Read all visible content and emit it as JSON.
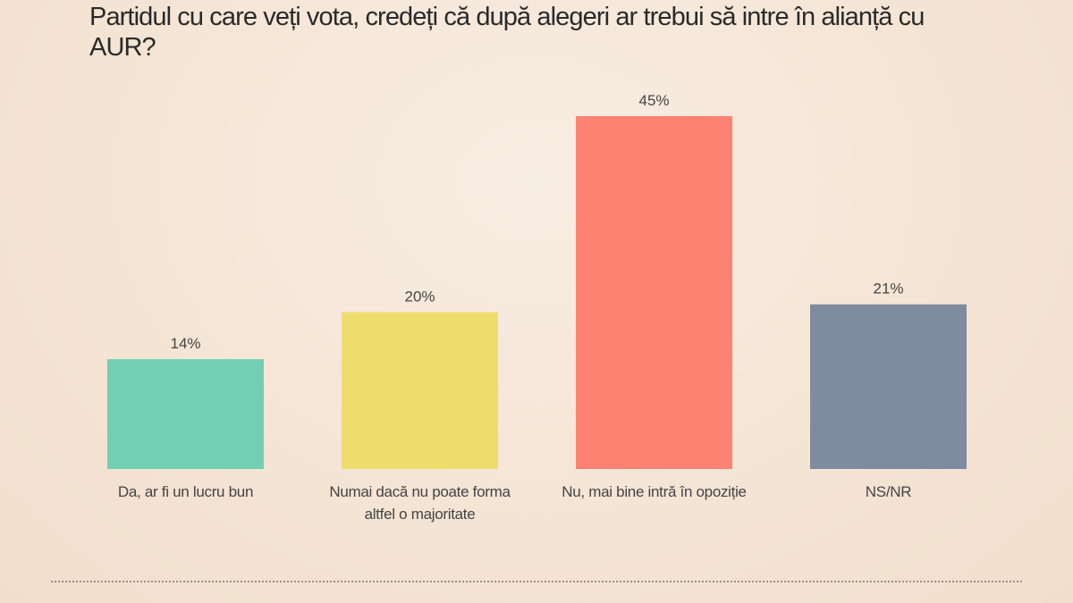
{
  "chart_data": {
    "type": "bar",
    "title": "Partidul cu care veți vota, credeți că după alegeri ar trebui să intre în alianță cu AUR?",
    "categories": [
      "Da, ar fi un lucru bun",
      "Numai dacă nu poate forma altfel o majoritate",
      "Nu, mai bine intră în opoziție",
      "NS/NR"
    ],
    "values": [
      14,
      20,
      45,
      21
    ],
    "value_labels": [
      "14%",
      "20%",
      "45%",
      "21%"
    ],
    "colors": [
      "#72cfb4",
      "#eedd6d",
      "#fe8272",
      "#7f8b9f"
    ],
    "xlabel": "",
    "ylabel": "",
    "ylim": [
      0,
      45
    ],
    "grid": false,
    "legend": "none"
  }
}
